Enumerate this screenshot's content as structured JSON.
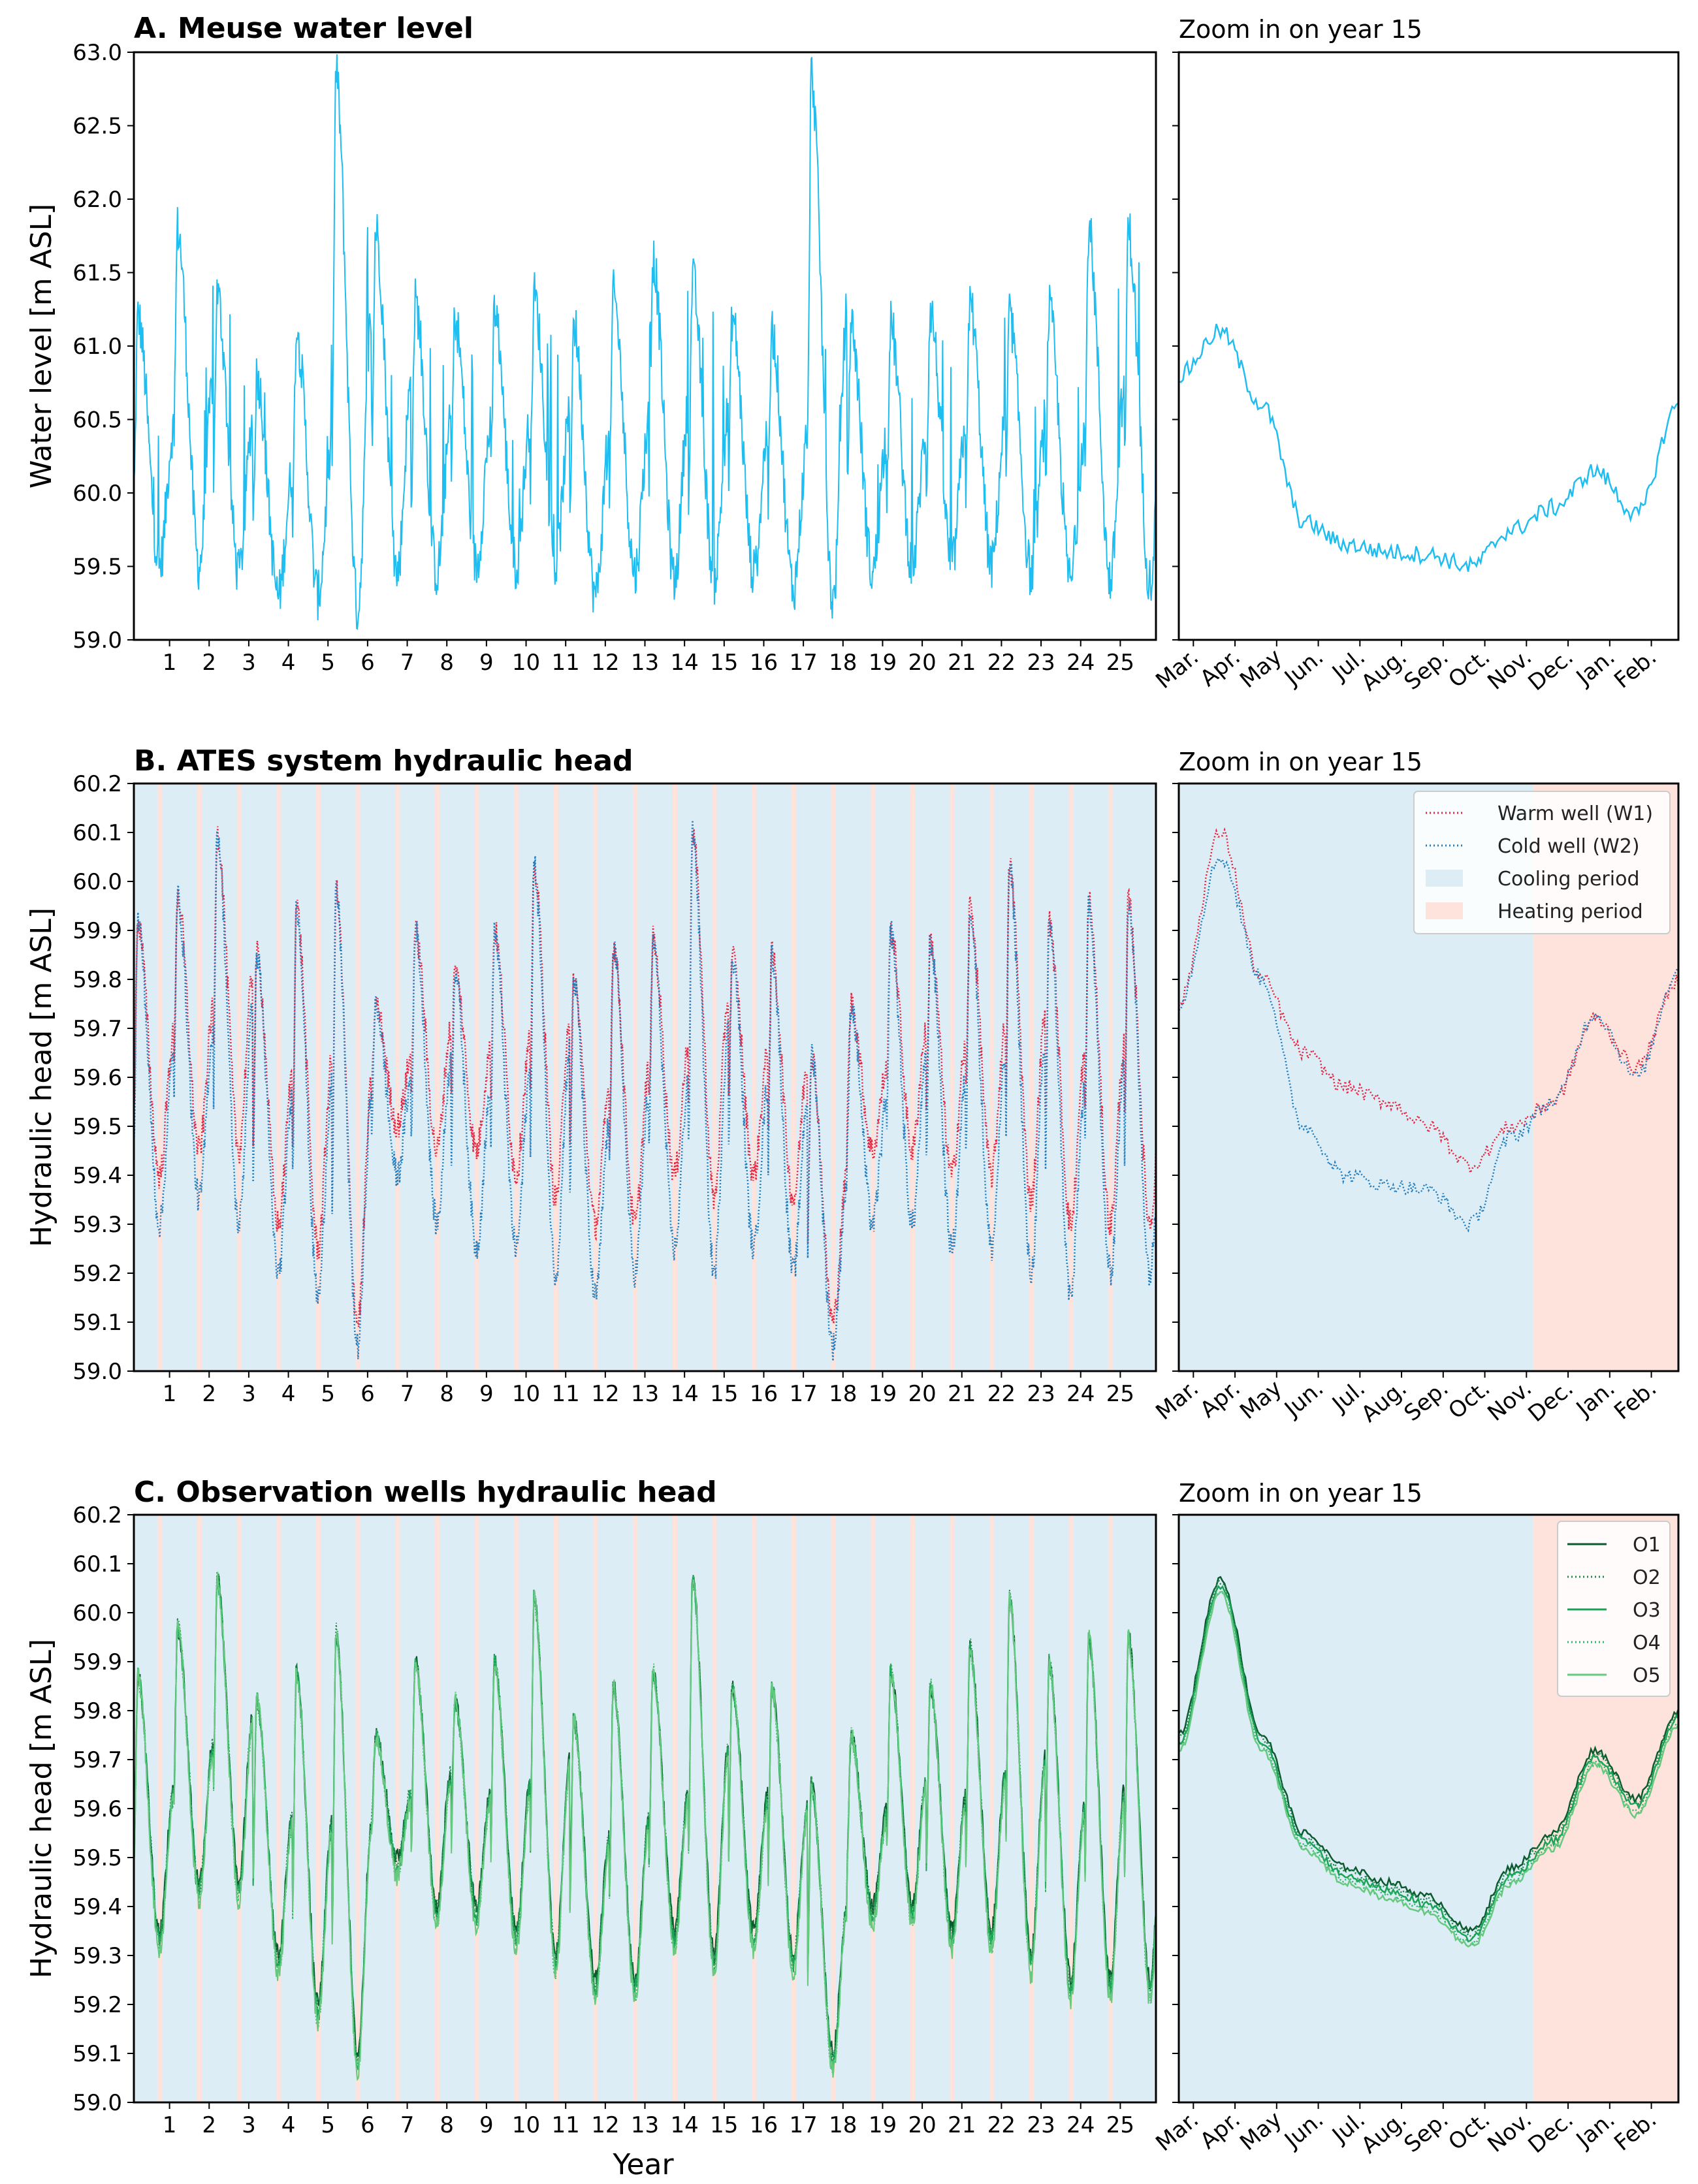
{
  "colors": {
    "meuse": "#1fbdf0",
    "warm": "#e8213f",
    "cold": "#1f7dc0",
    "cooling": "#dcedf5",
    "heating": "#fde3dc",
    "obs": [
      "#0b5a2e",
      "#1e8a4a",
      "#1aa257",
      "#33b566",
      "#66c97f"
    ]
  },
  "chart_data": [
    {
      "id": "A",
      "type": "line",
      "title": "A. Meuse water level",
      "zoom_title": "Zoom in on year 15",
      "ylabel": "Water level [m ASL]",
      "xlabel": "",
      "ylim": [
        59.0,
        63.0
      ],
      "yticks": [
        "59.0",
        "59.5",
        "60.0",
        "60.5",
        "61.0",
        "61.5",
        "62.0",
        "62.5",
        "63.0"
      ],
      "xticks": [
        "1",
        "2",
        "3",
        "4",
        "5",
        "6",
        "7",
        "8",
        "9",
        "10",
        "11",
        "12",
        "13",
        "14",
        "15",
        "16",
        "17",
        "18",
        "19",
        "20",
        "21",
        "22",
        "23",
        "24",
        "25"
      ],
      "zoom_xticks": [
        "Mar.",
        "Apr.",
        "May",
        "Jun.",
        "Jul.",
        "Aug.",
        "Sep.",
        "Oct.",
        "Nov.",
        "Dec.",
        "Jan.",
        "Feb."
      ],
      "series": [
        {
          "name": "Meuse water level",
          "color": "#1fbdf0",
          "annual_peaks": [
            61.2,
            61.8,
            61.35,
            60.8,
            61.1,
            62.85,
            61.8,
            61.3,
            61.2,
            61.25,
            61.35,
            61.15,
            61.35,
            61.6,
            61.45,
            61.2,
            61.1,
            62.85,
            61.15,
            61.15,
            61.25,
            61.3,
            61.2,
            61.25,
            61.8
          ],
          "annual_lows": [
            59.5,
            59.5,
            59.45,
            59.3,
            59.3,
            59.2,
            59.45,
            59.45,
            59.5,
            59.5,
            59.5,
            59.3,
            59.45,
            59.4,
            59.4,
            59.45,
            59.35,
            59.25,
            59.45,
            59.5,
            59.5,
            59.5,
            59.45,
            59.4,
            59.4
          ],
          "zoom": {
            "month_positions": [
              0,
              1,
              2,
              3,
              4,
              5,
              6,
              7,
              8,
              9,
              10,
              11,
              12
            ],
            "values": [
              60.8,
              61.1,
              60.6,
              59.8,
              59.65,
              59.6,
              59.58,
              59.5,
              59.75,
              59.9,
              60.15,
              59.85,
              60.6
            ]
          }
        }
      ]
    },
    {
      "id": "B",
      "type": "line",
      "title": "B. ATES system hydraulic head",
      "zoom_title": "Zoom in on year 15",
      "ylabel": "Hydraulic head [m ASL]",
      "xlabel": "",
      "ylim": [
        59.0,
        60.2
      ],
      "yticks": [
        "59.0",
        "59.1",
        "59.2",
        "59.3",
        "59.4",
        "59.5",
        "59.6",
        "59.7",
        "59.8",
        "59.9",
        "60.0",
        "60.1",
        "60.2"
      ],
      "xticks": [
        "1",
        "2",
        "3",
        "4",
        "5",
        "6",
        "7",
        "8",
        "9",
        "10",
        "11",
        "12",
        "13",
        "14",
        "15",
        "16",
        "17",
        "18",
        "19",
        "20",
        "21",
        "22",
        "23",
        "24",
        "25"
      ],
      "zoom_xticks": [
        "Mar.",
        "Apr.",
        "May",
        "Jun.",
        "Jul.",
        "Aug.",
        "Sep.",
        "Oct.",
        "Nov.",
        "Dec.",
        "Jan.",
        "Feb."
      ],
      "legend": [
        "Warm well (W1)",
        "Cold well (W2)",
        "Cooling period",
        "Heating period"
      ],
      "periods": {
        "cooling_fraction_of_year": 0.71,
        "heating_fraction_of_year": 0.29
      },
      "annual_peaks": [
        59.92,
        59.97,
        60.1,
        59.85,
        59.95,
        59.98,
        59.75,
        59.9,
        59.82,
        59.9,
        60.03,
        59.8,
        59.87,
        59.88,
        60.1,
        59.85,
        59.85,
        59.65,
        59.75,
        59.9,
        59.88,
        59.95,
        60.03,
        59.92,
        59.96
      ],
      "series": [
        {
          "name": "Warm well (W1)",
          "color": "#e8213f",
          "annual_lows": [
            59.4,
            59.45,
            59.45,
            59.3,
            59.25,
            59.1,
            59.5,
            59.45,
            59.45,
            59.4,
            59.35,
            59.3,
            59.3,
            59.4,
            59.35,
            59.4,
            59.35,
            59.1,
            59.45,
            59.45,
            59.4,
            59.4,
            59.35,
            59.3,
            59.3
          ],
          "zoom": {
            "month_positions": [
              0,
              1,
              2,
              3,
              4,
              5,
              6,
              7,
              8,
              9,
              10,
              11,
              12
            ],
            "values": [
              59.75,
              60.1,
              59.8,
              59.65,
              59.58,
              59.55,
              59.5,
              59.42,
              59.5,
              59.55,
              59.72,
              59.62,
              59.8
            ]
          }
        },
        {
          "name": "Cold well (W2)",
          "color": "#1f7dc0",
          "annual_lows": [
            59.3,
            59.35,
            59.3,
            59.2,
            59.15,
            59.05,
            59.4,
            59.3,
            59.25,
            59.25,
            59.2,
            59.15,
            59.2,
            59.25,
            59.2,
            59.25,
            59.2,
            59.05,
            59.3,
            59.3,
            59.25,
            59.25,
            59.2,
            59.15,
            59.2
          ],
          "zoom": {
            "month_positions": [
              0,
              1,
              2,
              3,
              4,
              5,
              6,
              7,
              8,
              9,
              10,
              11,
              12
            ],
            "values": [
              59.75,
              60.05,
              59.8,
              59.5,
              59.4,
              59.38,
              59.37,
              59.3,
              59.48,
              59.55,
              59.73,
              59.6,
              59.82
            ]
          }
        }
      ]
    },
    {
      "id": "C",
      "type": "line",
      "title": "C. Observation wells hydraulic head",
      "zoom_title": "Zoom in on year 15",
      "ylabel": "Hydraulic head [m ASL]",
      "xlabel": "Year",
      "ylim": [
        59.0,
        60.2
      ],
      "yticks": [
        "59.0",
        "59.1",
        "59.2",
        "59.3",
        "59.4",
        "59.5",
        "59.6",
        "59.7",
        "59.8",
        "59.9",
        "60.0",
        "60.1",
        "60.2"
      ],
      "xticks": [
        "1",
        "2",
        "3",
        "4",
        "5",
        "6",
        "7",
        "8",
        "9",
        "10",
        "11",
        "12",
        "13",
        "14",
        "15",
        "16",
        "17",
        "18",
        "19",
        "20",
        "21",
        "22",
        "23",
        "24",
        "25"
      ],
      "zoom_xticks": [
        "Mar.",
        "Apr.",
        "May",
        "Jun.",
        "Jul.",
        "Aug.",
        "Sep.",
        "Oct.",
        "Nov.",
        "Dec.",
        "Jan.",
        "Feb."
      ],
      "legend": [
        "O1",
        "O2",
        "O3",
        "O4",
        "O5"
      ],
      "periods": {
        "cooling_fraction_of_year": 0.71,
        "heating_fraction_of_year": 0.29
      },
      "annual_peaks": [
        59.87,
        59.97,
        60.07,
        59.82,
        59.88,
        59.96,
        59.75,
        59.9,
        59.82,
        59.9,
        60.03,
        59.78,
        59.85,
        59.88,
        60.07,
        59.85,
        59.85,
        59.65,
        59.75,
        59.88,
        59.85,
        59.93,
        60.03,
        59.9,
        59.95
      ],
      "annual_lows": [
        59.35,
        59.45,
        59.45,
        59.3,
        59.2,
        59.1,
        59.5,
        59.4,
        59.4,
        59.35,
        59.3,
        59.25,
        59.25,
        59.35,
        59.3,
        59.35,
        59.3,
        59.1,
        59.4,
        59.4,
        59.35,
        59.35,
        59.3,
        59.25,
        59.25
      ],
      "series": [
        {
          "name": "O1",
          "color": "#0b5a2e",
          "style": "solid"
        },
        {
          "name": "O2",
          "color": "#1e8a4a",
          "style": "dotted"
        },
        {
          "name": "O3",
          "color": "#1aa257",
          "style": "solid"
        },
        {
          "name": "O4",
          "color": "#33b566",
          "style": "dotted"
        },
        {
          "name": "O5",
          "color": "#66c97f",
          "style": "solid"
        }
      ],
      "zoom": {
        "month_positions": [
          0,
          1,
          2,
          3,
          4,
          5,
          6,
          7,
          8,
          9,
          10,
          11,
          12
        ],
        "values": [
          59.75,
          60.07,
          59.75,
          59.55,
          59.48,
          59.45,
          59.42,
          59.35,
          59.48,
          59.55,
          59.72,
          59.62,
          59.8
        ]
      }
    }
  ]
}
